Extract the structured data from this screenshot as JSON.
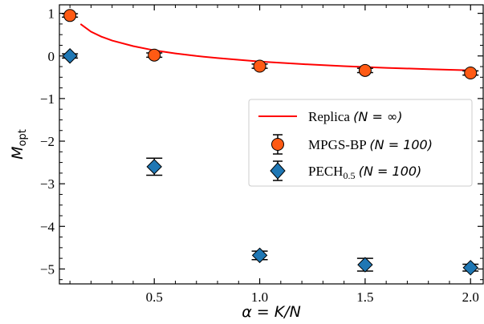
{
  "chart_data": {
    "type": "scatter",
    "xlabel": "α = K/N",
    "ylabel": "M",
    "ylabel_sub": "opt",
    "xlim": [
      0.05,
      2.06
    ],
    "ylim": [
      -5.35,
      1.2
    ],
    "x_ticks": [
      0.5,
      1.0,
      1.5,
      2.0
    ],
    "x_tick_labels": [
      "0.5",
      "1.0",
      "1.5",
      "2.0"
    ],
    "y_ticks": [
      1,
      0,
      -1,
      -2,
      -3,
      -4,
      -5
    ],
    "y_tick_labels": [
      "1",
      "0",
      "−1",
      "−2",
      "−3",
      "−4",
      "−5"
    ],
    "legend_position": "right",
    "legend": [
      {
        "label": "Replica",
        "math": "(N = ∞)"
      },
      {
        "label": "MPGS-BP",
        "math": "(N = 100)"
      },
      {
        "label": "PECH",
        "sub": "0.5",
        "math": "(N = 100)"
      }
    ],
    "series": [
      {
        "name": "Replica (N = ∞)",
        "kind": "line",
        "color": "#ff0000",
        "x": [
          0.15,
          0.2,
          0.25,
          0.3,
          0.4,
          0.5,
          0.6,
          0.7,
          0.8,
          1.0,
          1.2,
          1.4,
          1.6,
          1.8,
          2.0
        ],
        "y": [
          0.75,
          0.57,
          0.45,
          0.36,
          0.23,
          0.13,
          0.06,
          0.0,
          -0.05,
          -0.13,
          -0.19,
          -0.24,
          -0.28,
          -0.31,
          -0.34
        ]
      },
      {
        "name": "MPGS-BP (N = 100)",
        "kind": "points",
        "marker": "circle",
        "color": "#ff5a14",
        "x": [
          0.1,
          0.5,
          1.0,
          1.5,
          2.0
        ],
        "y": [
          0.95,
          0.02,
          -0.24,
          -0.34,
          -0.4
        ],
        "err": [
          0.04,
          0.05,
          0.05,
          0.05,
          0.05
        ]
      },
      {
        "name": "PECH0.5 (N = 100)",
        "kind": "points",
        "marker": "diamond",
        "color": "#1f77b4",
        "x": [
          0.1,
          0.5,
          1.0,
          1.5,
          2.0
        ],
        "y": [
          0.0,
          -2.6,
          -4.68,
          -4.9,
          -4.97
        ],
        "err": [
          0.05,
          0.2,
          0.1,
          0.15,
          0.08
        ]
      }
    ]
  }
}
